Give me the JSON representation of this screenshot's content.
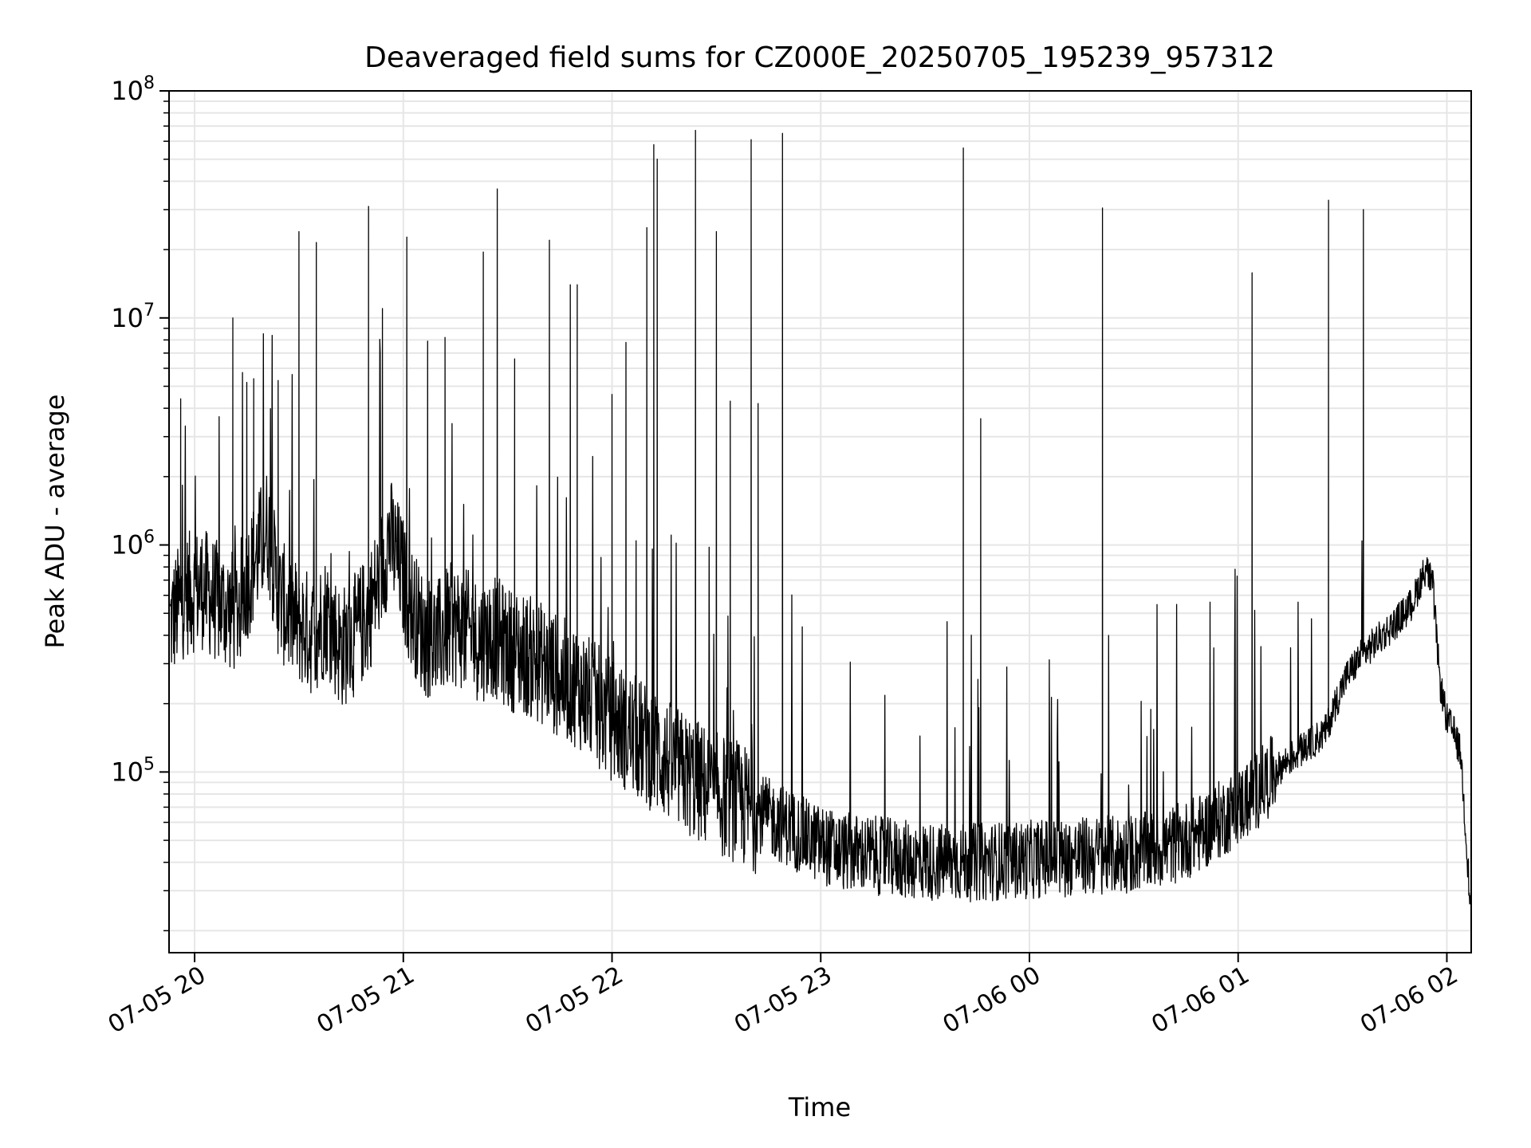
{
  "chart_data": {
    "type": "line",
    "title": "Deaveraged field sums for CZ000E_20250705_195239_957312",
    "xlabel": "Time",
    "ylabel": "Peak ADU - average",
    "yscale": "log",
    "ylim": [
      16000,
      100000000
    ],
    "xlim": [
      "2025-07-05 19:52:39",
      "2025-07-06 02:07:00"
    ],
    "grid": true,
    "legend": "none",
    "colors": {
      "line": "#000000",
      "grid": "#e6e6e6",
      "axes": "#000000"
    },
    "x_ticks": [
      {
        "t": "2025-07-05 20:00",
        "label": "07-05 20"
      },
      {
        "t": "2025-07-05 21:00",
        "label": "07-05 21"
      },
      {
        "t": "2025-07-05 22:00",
        "label": "07-05 22"
      },
      {
        "t": "2025-07-05 23:00",
        "label": "07-05 23"
      },
      {
        "t": "2025-07-06 00:00",
        "label": "07-06 00"
      },
      {
        "t": "2025-07-06 01:00",
        "label": "07-06 01"
      },
      {
        "t": "2025-07-06 02:00",
        "label": "07-06 02"
      }
    ],
    "y_ticks": [
      {
        "value": 100000,
        "base": "10",
        "exp": "5"
      },
      {
        "value": 1000000,
        "base": "10",
        "exp": "6"
      },
      {
        "value": 10000000,
        "base": "10",
        "exp": "7"
      },
      {
        "value": 100000000,
        "base": "10",
        "exp": "8"
      }
    ],
    "series": [
      {
        "points": [
          [
            "2025-07-05 19:53",
            450000
          ],
          [
            "2025-07-05 19:57",
            600000
          ],
          [
            "2025-07-05 20:02",
            650000
          ],
          [
            "2025-07-05 20:07",
            550000
          ],
          [
            "2025-07-05 20:12",
            500000
          ],
          [
            "2025-07-05 20:15",
            700000
          ],
          [
            "2025-07-05 20:18",
            900000
          ],
          [
            "2025-07-05 20:21",
            1200000
          ],
          [
            "2025-07-05 20:24",
            600000
          ],
          [
            "2025-07-05 20:27",
            500000
          ],
          [
            "2025-07-05 20:30",
            450000
          ],
          [
            "2025-07-05 20:34",
            400000
          ],
          [
            "2025-07-05 20:38",
            500000
          ],
          [
            "2025-07-05 20:42",
            350000
          ],
          [
            "2025-07-05 20:46",
            400000
          ],
          [
            "2025-07-05 20:50",
            500000
          ],
          [
            "2025-07-05 20:53",
            700000
          ],
          [
            "2025-07-05 20:56",
            1100000
          ],
          [
            "2025-07-05 20:59",
            800000
          ],
          [
            "2025-07-05 21:02",
            550000
          ],
          [
            "2025-07-05 21:06",
            400000
          ],
          [
            "2025-07-05 21:10",
            380000
          ],
          [
            "2025-07-05 21:14",
            450000
          ],
          [
            "2025-07-05 21:18",
            420000
          ],
          [
            "2025-07-05 21:22",
            380000
          ],
          [
            "2025-07-05 21:26",
            400000
          ],
          [
            "2025-07-05 21:30",
            350000
          ],
          [
            "2025-07-05 21:35",
            330000
          ],
          [
            "2025-07-05 21:40",
            300000
          ],
          [
            "2025-07-05 21:45",
            260000
          ],
          [
            "2025-07-05 21:50",
            240000
          ],
          [
            "2025-07-05 21:55",
            200000
          ],
          [
            "2025-07-05 22:00",
            170000
          ],
          [
            "2025-07-05 22:05",
            150000
          ],
          [
            "2025-07-05 22:10",
            130000
          ],
          [
            "2025-07-05 22:15",
            115000
          ],
          [
            "2025-07-05 22:20",
            100000
          ],
          [
            "2025-07-05 22:25",
            90000
          ],
          [
            "2025-07-05 22:30",
            80000
          ],
          [
            "2025-07-05 22:35",
            75000
          ],
          [
            "2025-07-05 22:40",
            68000
          ],
          [
            "2025-07-05 22:45",
            63000
          ],
          [
            "2025-07-05 22:50",
            58000
          ],
          [
            "2025-07-05 22:55",
            52000
          ],
          [
            "2025-07-05 23:00",
            48000
          ],
          [
            "2025-07-05 23:05",
            45000
          ],
          [
            "2025-07-05 23:10",
            44000
          ],
          [
            "2025-07-05 23:15",
            43000
          ],
          [
            "2025-07-05 23:20",
            42000
          ],
          [
            "2025-07-05 23:25",
            41000
          ],
          [
            "2025-07-05 23:30",
            40500
          ],
          [
            "2025-07-05 23:35",
            40000
          ],
          [
            "2025-07-05 23:40",
            40000
          ],
          [
            "2025-07-05 23:45",
            40000
          ],
          [
            "2025-07-05 23:50",
            40500
          ],
          [
            "2025-07-05 23:55",
            41000
          ],
          [
            "2025-07-06 00:00",
            41000
          ],
          [
            "2025-07-06 00:05",
            42000
          ],
          [
            "2025-07-06 00:10",
            42000
          ],
          [
            "2025-07-06 00:15",
            42500
          ],
          [
            "2025-07-06 00:20",
            43000
          ],
          [
            "2025-07-06 00:25",
            43000
          ],
          [
            "2025-07-06 00:30",
            44000
          ],
          [
            "2025-07-06 00:35",
            45000
          ],
          [
            "2025-07-06 00:40",
            47000
          ],
          [
            "2025-07-06 00:45",
            50000
          ],
          [
            "2025-07-06 00:50",
            55000
          ],
          [
            "2025-07-06 00:55",
            62000
          ],
          [
            "2025-07-06 01:00",
            70000
          ],
          [
            "2025-07-06 01:05",
            82000
          ],
          [
            "2025-07-06 01:10",
            98000
          ],
          [
            "2025-07-06 01:15",
            115000
          ],
          [
            "2025-07-06 01:20",
            130000
          ],
          [
            "2025-07-06 01:25",
            150000
          ],
          [
            "2025-07-06 01:28",
            200000
          ],
          [
            "2025-07-06 01:31",
            260000
          ],
          [
            "2025-07-06 01:35",
            320000
          ],
          [
            "2025-07-06 01:40",
            380000
          ],
          [
            "2025-07-06 01:45",
            450000
          ],
          [
            "2025-07-06 01:50",
            550000
          ],
          [
            "2025-07-06 01:54",
            800000
          ],
          [
            "2025-07-06 01:56",
            650000
          ],
          [
            "2025-07-06 01:58",
            250000
          ],
          [
            "2025-07-06 02:00",
            170000
          ],
          [
            "2025-07-06 02:02",
            150000
          ],
          [
            "2025-07-06 02:04",
            120000
          ],
          [
            "2025-07-06 02:06",
            40000
          ],
          [
            "2025-07-06 02:07",
            22000
          ]
        ],
        "spikes": [
          [
            "2025-07-05 19:56",
            4400000
          ],
          [
            "2025-07-05 20:11",
            10000000
          ],
          [
            "2025-07-05 20:15",
            5200000
          ],
          [
            "2025-07-05 20:17",
            5400000
          ],
          [
            "2025-07-05 20:24",
            5300000
          ],
          [
            "2025-07-05 20:30",
            24000000
          ],
          [
            "2025-07-05 20:35",
            21500000
          ],
          [
            "2025-07-05 20:50",
            31000000
          ],
          [
            "2025-07-05 20:54",
            11000000
          ],
          [
            "2025-07-05 21:01",
            22700000
          ],
          [
            "2025-07-05 21:07",
            7900000
          ],
          [
            "2025-07-05 21:12",
            8200000
          ],
          [
            "2025-07-05 21:23",
            19500000
          ],
          [
            "2025-07-05 21:27",
            37000000
          ],
          [
            "2025-07-05 21:32",
            6600000
          ],
          [
            "2025-07-05 21:42",
            22000000
          ],
          [
            "2025-07-05 21:48",
            14000000
          ],
          [
            "2025-07-05 21:50",
            14000000
          ],
          [
            "2025-07-05 22:00",
            4600000
          ],
          [
            "2025-07-05 22:04",
            7800000
          ],
          [
            "2025-07-05 22:10",
            25000000
          ],
          [
            "2025-07-05 22:12",
            58000000
          ],
          [
            "2025-07-05 22:13",
            50000000
          ],
          [
            "2025-07-05 22:24",
            67000000
          ],
          [
            "2025-07-05 22:30",
            24000000
          ],
          [
            "2025-07-05 22:34",
            4300000
          ],
          [
            "2025-07-05 22:40",
            61000000
          ],
          [
            "2025-07-05 22:42",
            4200000
          ],
          [
            "2025-07-05 22:49",
            65000000
          ],
          [
            "2025-07-05 23:41",
            56000000
          ],
          [
            "2025-07-05 23:46",
            3600000
          ],
          [
            "2025-07-06 00:21",
            30500000
          ],
          [
            "2025-07-06 01:04",
            15800000
          ],
          [
            "2025-07-06 01:26",
            33000000
          ],
          [
            "2025-07-06 01:36",
            30000000
          ]
        ]
      }
    ]
  }
}
